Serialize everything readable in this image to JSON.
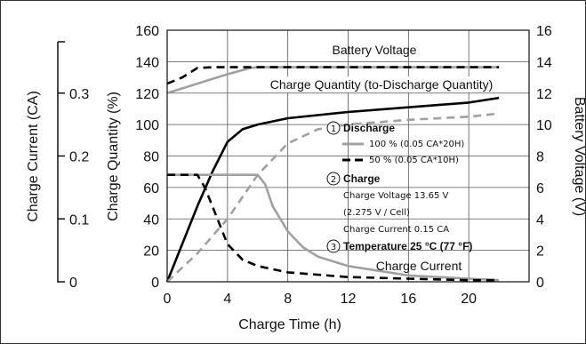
{
  "chart_data": {
    "type": "line",
    "xlabel": "Charge Time (h)",
    "ylabel_left": "Charge Quantity (%)",
    "ylabel_right": "Battery Voltage (V)",
    "ylabel_far_left": "Charge Current (CA)",
    "xlim": [
      0,
      24
    ],
    "ylim_left": [
      0,
      160
    ],
    "ylim_right": [
      0,
      16
    ],
    "ylim_current": [
      0,
      0.4
    ],
    "x_ticks": [
      "0",
      "4",
      "8",
      "12",
      "16",
      "20"
    ],
    "y_left_ticks": [
      "0",
      "20",
      "40",
      "60",
      "80",
      "100",
      "120",
      "140",
      "160"
    ],
    "y_right_ticks": [
      "0",
      "2",
      "4",
      "6",
      "8",
      "10",
      "12",
      "14",
      "16"
    ],
    "y_current_ticks": [
      "0",
      "0.1",
      "0.2",
      "0.3"
    ],
    "grid": true,
    "annotations": {
      "battery_voltage": "Battery Voltage",
      "charge_quantity": "Charge Quantity (to-Discharge Quantity)",
      "charge_current": "Charge Current"
    },
    "legend": {
      "discharge_num": "1",
      "discharge_title": "Discharge",
      "discharge_100": "100 % (0.05 CA*20H)",
      "discharge_50": "50 % (0.05 CA*10H)",
      "charge_num": "2",
      "charge_title": "Charge",
      "charge_voltage": "Charge Voltage 13.65 V",
      "charge_voltage_cell": "(2.275 V / Cell)",
      "charge_current": "Charge Current 0.15 CA",
      "temp_num": "3",
      "temp_title": "Temperature 25 °C (77 °F)"
    },
    "series": [
      {
        "axis": "right",
        "color": "#a0a0a0",
        "dash": "solid",
        "x": [
          0,
          2,
          4,
          5.5,
          6,
          8,
          12,
          16,
          20,
          22
        ],
        "y": [
          12.0,
          12.6,
          13.2,
          13.6,
          13.65,
          13.65,
          13.65,
          13.65,
          13.65,
          13.65
        ]
      },
      {
        "axis": "right",
        "color": "#000000",
        "dash": "dashed",
        "x": [
          0,
          1,
          2,
          3,
          8,
          12,
          16,
          20,
          22
        ],
        "y": [
          12.6,
          13.0,
          13.6,
          13.65,
          13.65,
          13.65,
          13.65,
          13.65,
          13.65
        ]
      },
      {
        "axis": "left",
        "color": "#000000",
        "dash": "solid",
        "x": [
          0,
          2,
          3,
          4,
          5,
          6,
          8,
          12,
          16,
          20,
          22
        ],
        "y": [
          0,
          48,
          70,
          89,
          97,
          100,
          104,
          108,
          111,
          114,
          117
        ]
      },
      {
        "axis": "left",
        "color": "#a0a0a0",
        "dash": "dashed",
        "x": [
          0,
          2,
          4,
          6,
          8,
          10,
          12,
          16,
          20,
          22
        ],
        "y": [
          0,
          18,
          40,
          68,
          88,
          97,
          100,
          103,
          105,
          107
        ]
      },
      {
        "axis": "left",
        "color": "#a0a0a0",
        "dash": "solid",
        "x": [
          0,
          1,
          2,
          3,
          4,
          5,
          6,
          6.5,
          7,
          8,
          9,
          10,
          12,
          16,
          20,
          22
        ],
        "y": [
          68,
          68,
          68,
          68,
          68,
          68,
          68,
          62,
          48,
          32,
          22,
          16,
          10,
          4,
          2,
          1
        ]
      },
      {
        "axis": "left",
        "color": "#000000",
        "dash": "dashed",
        "x": [
          0,
          1,
          2,
          2.5,
          3,
          4,
          5,
          6,
          8,
          12,
          16,
          20,
          22
        ],
        "y": [
          68,
          68,
          68,
          60,
          48,
          24,
          14,
          10,
          6,
          3,
          2,
          1,
          1
        ]
      }
    ]
  }
}
